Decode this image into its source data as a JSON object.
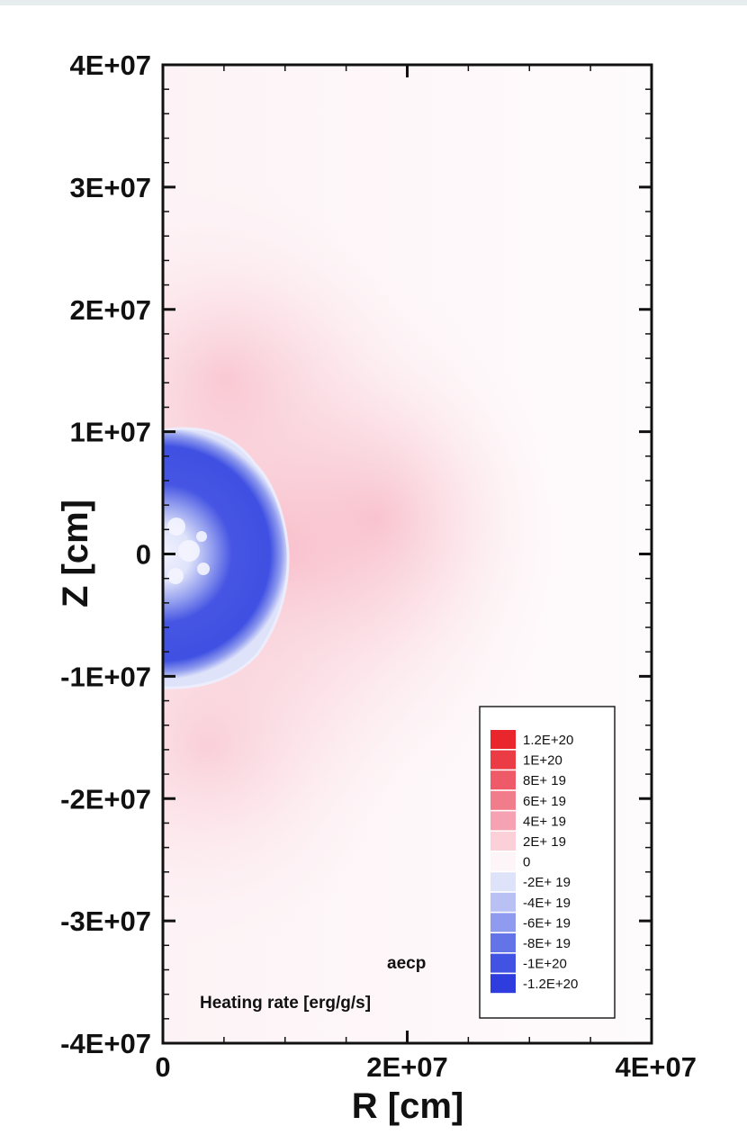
{
  "chart_data": {
    "type": "heatmap",
    "title": "",
    "xlabel": "R [cm]",
    "ylabel": "Z [cm]",
    "xlim": [
      0,
      40000000
    ],
    "ylim": [
      -40000000,
      40000000
    ],
    "x_ticks": [
      {
        "value": 0,
        "label": "0"
      },
      {
        "value": 20000000,
        "label": "2E+07"
      },
      {
        "value": 40000000,
        "label": "4E+07"
      }
    ],
    "y_ticks": [
      {
        "value": 40000000,
        "label": "4E+07"
      },
      {
        "value": 30000000,
        "label": "3E+07"
      },
      {
        "value": 20000000,
        "label": "2E+07"
      },
      {
        "value": 10000000,
        "label": "1E+07"
      },
      {
        "value": 0,
        "label": "0"
      },
      {
        "value": -10000000,
        "label": "-1E+07"
      },
      {
        "value": -20000000,
        "label": "-2E+07"
      },
      {
        "value": -30000000,
        "label": "-3E+07"
      },
      {
        "value": -40000000,
        "label": "-4E+07"
      }
    ],
    "variable": "aecp",
    "colorbar_title": "Heating rate [erg/g/s]",
    "colorbar_levels": [
      {
        "label": "1.2E+20",
        "color": "#e8262b"
      },
      {
        "label": "1E+20",
        "color": "#eb3c45"
      },
      {
        "label": "8E+ 19",
        "color": "#ef5a68"
      },
      {
        "label": "6E+ 19",
        "color": "#f17c8a"
      },
      {
        "label": "4E+ 19",
        "color": "#f6a2b2"
      },
      {
        "label": "2E+ 19",
        "color": "#fbd0d9"
      },
      {
        "label": "0",
        "color": "#fdf5f8"
      },
      {
        "label": "-2E+ 19",
        "color": "#dfe3fa"
      },
      {
        "label": "-4E+ 19",
        "color": "#b9c0f4"
      },
      {
        "label": "-6E+ 19",
        "color": "#8f9bee"
      },
      {
        "label": "-8E+ 19",
        "color": "#6373e8"
      },
      {
        "label": "-1E+20",
        "color": "#4252e3"
      },
      {
        "label": "-1.2E+20",
        "color": "#2f3dde"
      }
    ],
    "legend_position": "bottom-right",
    "features": [
      {
        "name": "cooling-core",
        "r_max": 10000000,
        "z_range": [
          -10000000,
          10000000
        ],
        "value_approx": -1e+20
      },
      {
        "name": "heating-halo",
        "r_range": [
          0,
          30000000
        ],
        "z_range": [
          -30000000,
          20000000
        ],
        "value_approx": 2e+19
      }
    ]
  }
}
